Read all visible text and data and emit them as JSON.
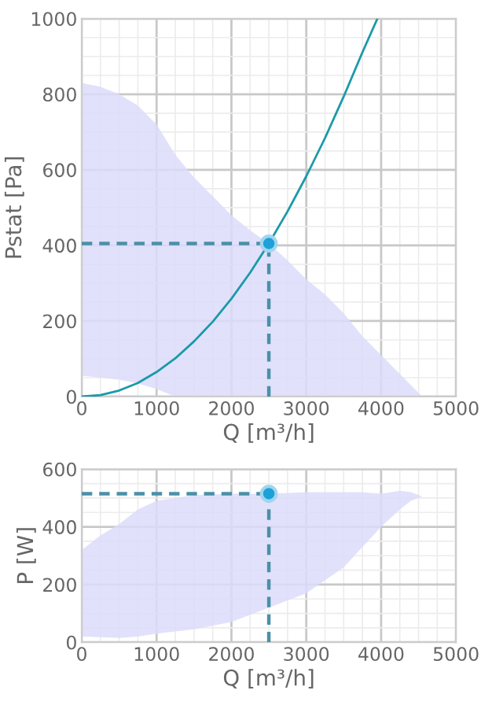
{
  "chart_data": [
    {
      "type": "line",
      "xlabel": "Q [m³/h]",
      "ylabel": "Pstat [Pa]",
      "xlim": [
        0,
        5000
      ],
      "ylim": [
        0,
        1000
      ],
      "xticks": [
        0,
        1000,
        2000,
        3000,
        4000,
        5000
      ],
      "yticks": [
        0,
        200,
        400,
        600,
        800,
        1000
      ],
      "grid": true,
      "legend": false,
      "series": [
        {
          "color": "#dcdcfa",
          "x": [
            0,
            250,
            500,
            750,
            1000,
            1250,
            1500,
            1750,
            2000,
            2250,
            2500,
            2750,
            3000,
            3250,
            3500,
            3750,
            4000,
            4250,
            4500,
            4550
          ],
          "values": [
            null,
            null,
            null,
            null,
            null,
            null,
            null,
            null,
            null,
            null,
            null,
            null,
            null,
            null,
            null,
            null,
            null,
            null,
            null,
            null
          ],
          "upper": [
            830,
            820,
            800,
            770,
            720,
            640,
            580,
            530,
            480,
            440,
            405,
            360,
            310,
            270,
            220,
            160,
            110,
            60,
            10,
            0
          ],
          "lower": [
            55,
            50,
            45,
            35,
            20,
            0,
            0,
            0,
            0,
            0,
            0,
            0,
            0,
            0,
            0,
            0,
            0,
            0,
            0,
            0
          ]
        },
        {
          "color": "#1a9aa8",
          "line_style": "solid",
          "marker": "none",
          "x": [
            0,
            250,
            500,
            750,
            1000,
            1250,
            1500,
            1750,
            2000,
            2250,
            2500,
            2750,
            3000,
            3250,
            3500,
            3750,
            3950
          ],
          "values": [
            0,
            4,
            16,
            36,
            65,
            101,
            146,
            198,
            259,
            328,
            405,
            490,
            583,
            684,
            794,
            911,
            1000
          ]
        },
        {
          "color": "#4a90a8",
          "line_style": "dashed",
          "marker": "none",
          "x": [
            0,
            2500
          ],
          "values": [
            405,
            405
          ]
        },
        {
          "color": "#4a90a8",
          "line_style": "dashed",
          "marker": "none",
          "x": [
            2500,
            2500
          ],
          "values": [
            0,
            405
          ]
        },
        {
          "type": "scatter",
          "color": "#1ea0d8",
          "marker": "circle",
          "x": [
            2500
          ],
          "values": [
            405
          ]
        }
      ]
    },
    {
      "type": "line",
      "xlabel": "Q [m³/h]",
      "ylabel": "P [W]",
      "xlim": [
        0,
        5000
      ],
      "ylim": [
        0,
        600
      ],
      "xticks": [
        0,
        1000,
        2000,
        3000,
        4000,
        5000
      ],
      "yticks": [
        0,
        200,
        400,
        600
      ],
      "grid": true,
      "legend": false,
      "series": [
        {
          "color": "#dcdcfa",
          "x": [
            0,
            250,
            500,
            750,
            1000,
            1500,
            2000,
            2500,
            3000,
            3500,
            3750,
            4000,
            4250,
            4400,
            4550
          ],
          "values": [
            null,
            null,
            null,
            null,
            null,
            null,
            null,
            null,
            null,
            null,
            null,
            null,
            null,
            null,
            null
          ],
          "upper": [
            320,
            370,
            410,
            460,
            490,
            510,
            515,
            515,
            520,
            520,
            520,
            515,
            525,
            520,
            505
          ],
          "lower": [
            20,
            18,
            15,
            20,
            30,
            45,
            70,
            120,
            170,
            260,
            330,
            400,
            460,
            490,
            505
          ]
        },
        {
          "color": "#4a90a8",
          "line_style": "dashed",
          "marker": "none",
          "x": [
            0,
            2500
          ],
          "values": [
            515,
            515
          ]
        },
        {
          "color": "#4a90a8",
          "line_style": "dashed",
          "marker": "none",
          "x": [
            2500,
            2500
          ],
          "values": [
            0,
            515
          ]
        },
        {
          "type": "scatter",
          "color": "#1ea0d8",
          "marker": "circle",
          "x": [
            2500
          ],
          "values": [
            515
          ]
        }
      ]
    }
  ]
}
